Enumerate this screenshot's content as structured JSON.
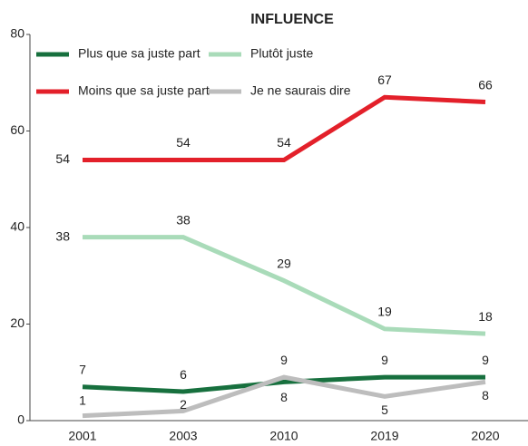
{
  "chart_data": {
    "type": "line",
    "title": "INFLUENCE",
    "categories": [
      "2001",
      "2003",
      "2010",
      "2019",
      "2020"
    ],
    "series": [
      {
        "name": "Plus que sa juste part",
        "color": "#17703e",
        "values": [
          7,
          6,
          8,
          9,
          9
        ]
      },
      {
        "name": "Plutôt juste",
        "color": "#a9dbb9",
        "values": [
          38,
          38,
          29,
          19,
          18
        ]
      },
      {
        "name": "Moins que sa juste part",
        "color": "#e3202a",
        "values": [
          54,
          54,
          54,
          67,
          66
        ]
      },
      {
        "name": "Je ne saurais dire",
        "color": "#bdbdbd",
        "values": [
          1,
          2,
          9,
          5,
          8
        ]
      }
    ],
    "ylim": [
      0,
      80
    ],
    "yticks": [
      0,
      20,
      40,
      60,
      80
    ]
  }
}
